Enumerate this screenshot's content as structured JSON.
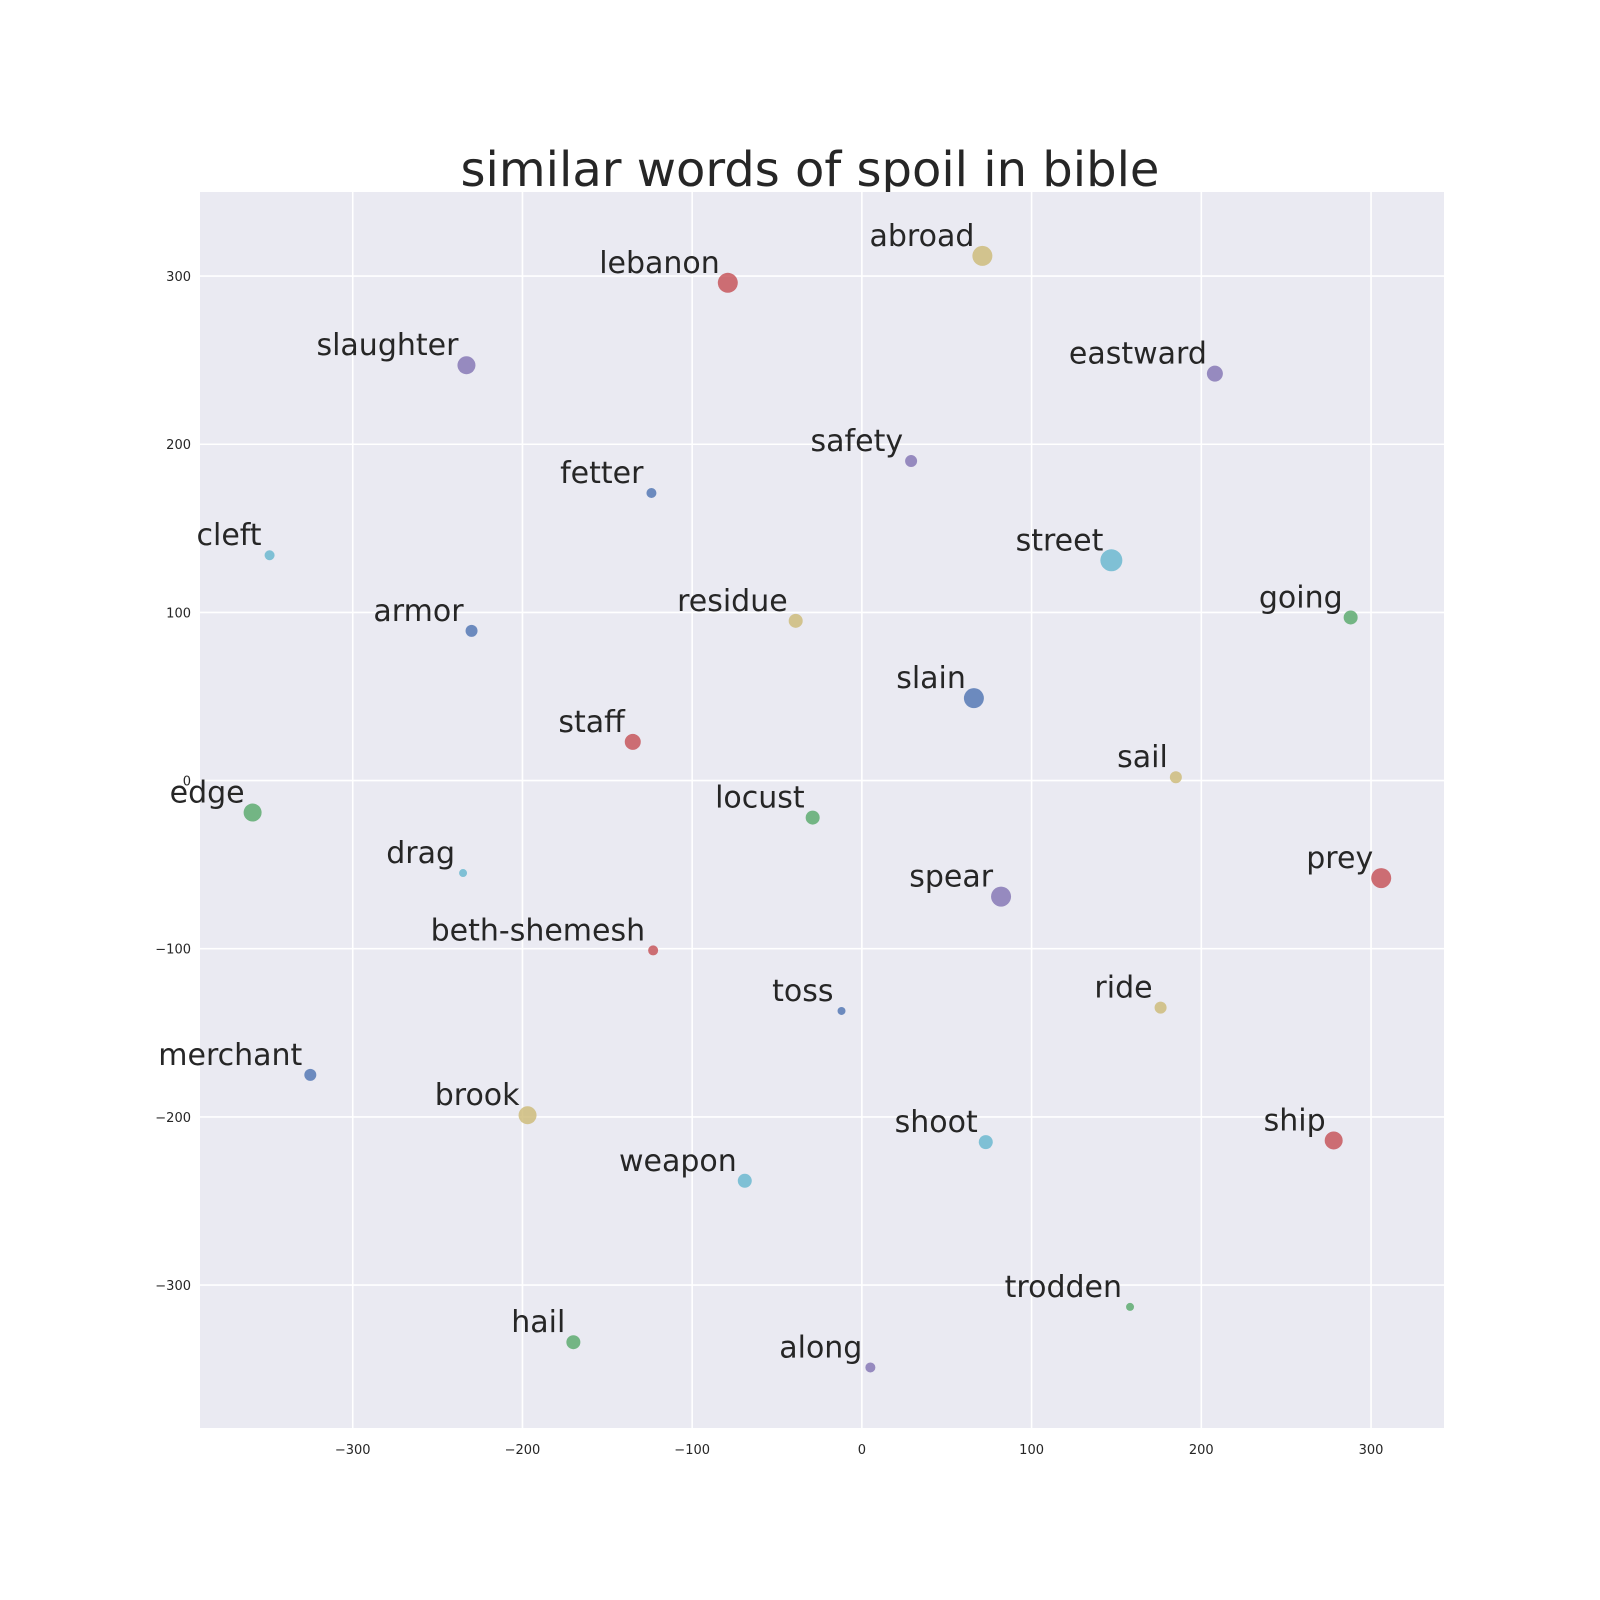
{
  "chart_data": {
    "type": "scatter",
    "title": "similar words of spoil in bible",
    "xlabel": "",
    "ylabel": "",
    "xlim": [
      -390,
      343
    ],
    "ylim": [
      -385,
      350
    ],
    "x_ticks": [
      -300,
      -200,
      -100,
      0,
      100,
      200,
      300
    ],
    "y_ticks": [
      -300,
      -200,
      -100,
      0,
      100,
      200,
      300
    ],
    "x_tick_labels": [
      "−300",
      "−200",
      "−100",
      "0",
      "100",
      "200",
      "300"
    ],
    "y_tick_labels": [
      "−300",
      "−200",
      "−100",
      "0",
      "100",
      "200",
      "300"
    ],
    "grid": true,
    "background": "#eaeaf2",
    "points": [
      {
        "word": "abroad",
        "x": 71,
        "y": 312,
        "size": 10,
        "color": "#ccb974"
      },
      {
        "word": "lebanon",
        "x": -79,
        "y": 296,
        "size": 10,
        "color": "#c44e52"
      },
      {
        "word": "slaughter",
        "x": -233,
        "y": 247,
        "size": 9,
        "color": "#8172b2"
      },
      {
        "word": "eastward",
        "x": 208,
        "y": 242,
        "size": 8,
        "color": "#8172b2"
      },
      {
        "word": "safety",
        "x": 29,
        "y": 190,
        "size": 6,
        "color": "#8172b2"
      },
      {
        "word": "fetter",
        "x": -124,
        "y": 171,
        "size": 5,
        "color": "#4c72b0"
      },
      {
        "word": "cleft",
        "x": -349,
        "y": 134,
        "size": 5,
        "color": "#64b5cd"
      },
      {
        "word": "street",
        "x": 147,
        "y": 131,
        "size": 11,
        "color": "#64b5cd"
      },
      {
        "word": "going",
        "x": 288,
        "y": 97,
        "size": 7,
        "color": "#55a868"
      },
      {
        "word": "armor",
        "x": -230,
        "y": 89,
        "size": 6,
        "color": "#4c72b0"
      },
      {
        "word": "residue",
        "x": -39,
        "y": 95,
        "size": 7,
        "color": "#ccb974"
      },
      {
        "word": "slain",
        "x": 66,
        "y": 49,
        "size": 10,
        "color": "#4c72b0"
      },
      {
        "word": "staff",
        "x": -135,
        "y": 23,
        "size": 8,
        "color": "#c44e52"
      },
      {
        "word": "sail",
        "x": 185,
        "y": 2,
        "size": 6,
        "color": "#ccb974"
      },
      {
        "word": "edge",
        "x": -359,
        "y": -19,
        "size": 9,
        "color": "#55a868"
      },
      {
        "word": "locust",
        "x": -29,
        "y": -22,
        "size": 7,
        "color": "#55a868"
      },
      {
        "word": "drag",
        "x": -235,
        "y": -55,
        "size": 4,
        "color": "#64b5cd"
      },
      {
        "word": "prey",
        "x": 306,
        "y": -58,
        "size": 10,
        "color": "#c44e52"
      },
      {
        "word": "spear",
        "x": 82,
        "y": -69,
        "size": 10,
        "color": "#8172b2"
      },
      {
        "word": "beth-shemesh",
        "x": -123,
        "y": -101,
        "size": 5,
        "color": "#c44e52"
      },
      {
        "word": "toss",
        "x": -12,
        "y": -137,
        "size": 4,
        "color": "#4c72b0"
      },
      {
        "word": "ride",
        "x": 176,
        "y": -135,
        "size": 6,
        "color": "#ccb974"
      },
      {
        "word": "merchant",
        "x": -325,
        "y": -175,
        "size": 6,
        "color": "#4c72b0"
      },
      {
        "word": "brook",
        "x": -197,
        "y": -199,
        "size": 9,
        "color": "#ccb974"
      },
      {
        "word": "shoot",
        "x": 73,
        "y": -215,
        "size": 7,
        "color": "#64b5cd"
      },
      {
        "word": "ship",
        "x": 278,
        "y": -214,
        "size": 9,
        "color": "#c44e52"
      },
      {
        "word": "weapon",
        "x": -69,
        "y": -238,
        "size": 7,
        "color": "#64b5cd"
      },
      {
        "word": "trodden",
        "x": 158,
        "y": -313,
        "size": 4,
        "color": "#55a868"
      },
      {
        "word": "hail",
        "x": -170,
        "y": -334,
        "size": 7,
        "color": "#55a868"
      },
      {
        "word": "along",
        "x": 5,
        "y": -349,
        "size": 5,
        "color": "#8172b2"
      }
    ]
  }
}
